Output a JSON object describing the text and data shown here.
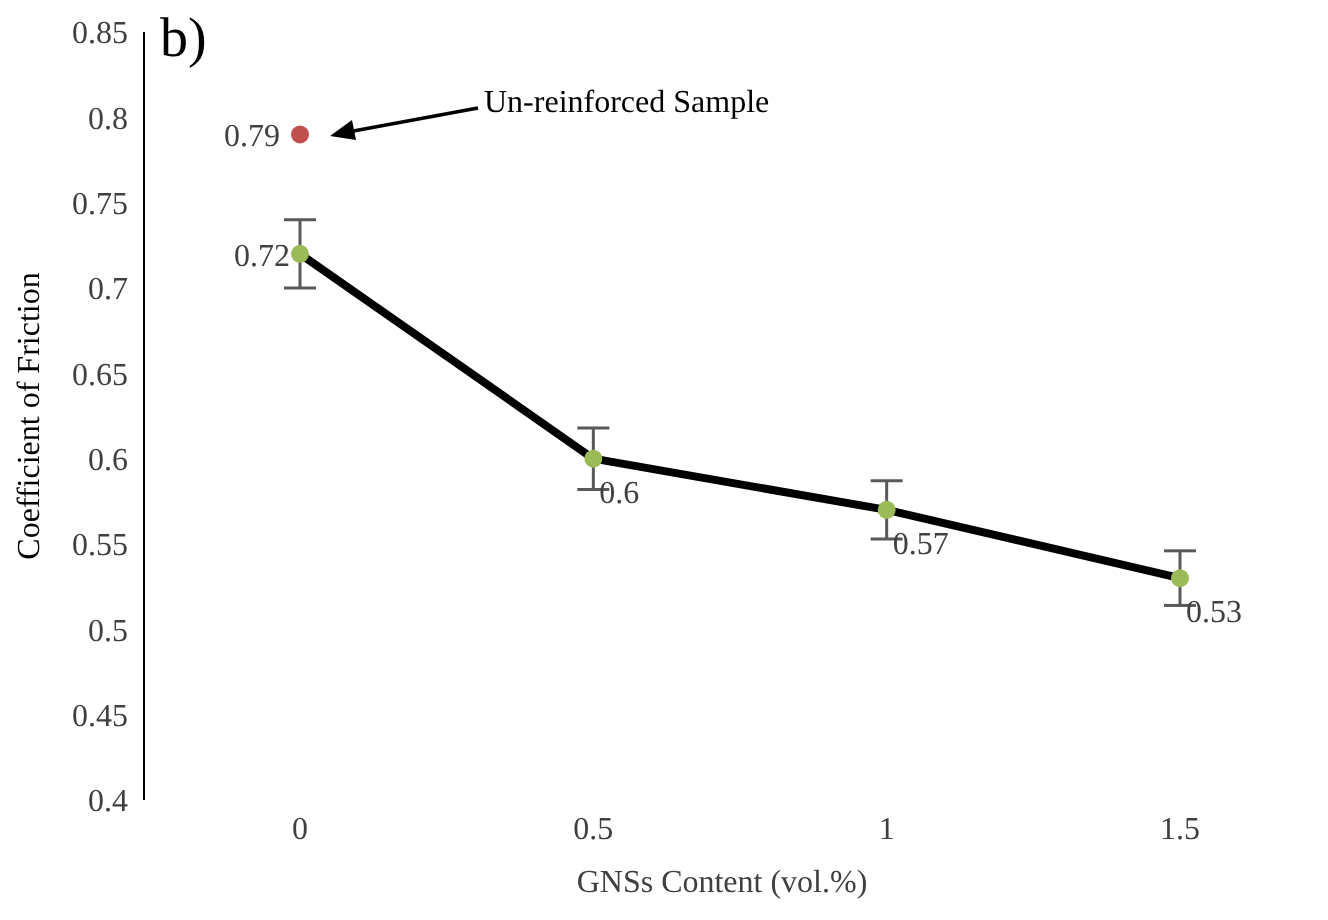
{
  "chart_data": {
    "type": "line",
    "xlabel": "GNSs Content (vol.%)",
    "ylabel": "Coefficient of Friction",
    "categories": [
      "0",
      "0.5",
      "1",
      "1.5"
    ],
    "series": [
      {
        "color": "#000000",
        "colors": [
          "#9bbb59",
          "#9bbb59",
          "#9bbb59",
          "#9bbb59"
        ],
        "values": [
          0.72,
          0.6,
          0.57,
          0.53
        ],
        "errors": [
          0.02,
          0.018,
          0.017,
          0.016
        ]
      },
      {
        "type": "scatter",
        "color": "#c0504d",
        "values": [
          0.79,
          null,
          null,
          null
        ]
      }
    ],
    "ylim": [
      0.4,
      0.85
    ],
    "yticks": [
      0.4,
      0.45,
      0.5,
      0.55,
      0.6,
      0.65,
      0.7,
      0.75,
      0.8,
      0.85
    ],
    "grid": false,
    "legend": false,
    "marker": "circle",
    "data_labels": true,
    "annotations": [
      "Un-reinforced Sample",
      "b)"
    ]
  }
}
